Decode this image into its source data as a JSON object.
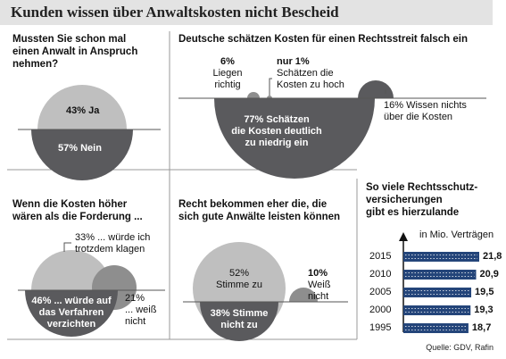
{
  "header": {
    "title": "Kunden wissen über Anwaltskosten nicht Bescheid"
  },
  "colors": {
    "dark": "#5a5a5d",
    "light": "#bfbfbf",
    "bar": "#24457a",
    "header_bg": "#e3e3e3"
  },
  "source": "Quelle: GDV, Rafin",
  "chart_data": [
    {
      "type": "pie",
      "title": "Mussten Sie schon mal einen Anwalt in Anspruch nehmen?",
      "title_lines": [
        "Mussten Sie schon mal",
        "einen Anwalt in Anspruch",
        "nehmen?"
      ],
      "slices": [
        {
          "label": "Ja",
          "value": 43,
          "text": "43% Ja"
        },
        {
          "label": "Nein",
          "value": 57,
          "text": "57% Nein"
        }
      ]
    },
    {
      "type": "pie",
      "title": "Deutsche schätzen Kosten für einen Rechtsstreit falsch ein",
      "slices": [
        {
          "value": 6,
          "lines": [
            "6%",
            "Liegen",
            "richtig"
          ]
        },
        {
          "value": 1,
          "lines": [
            "nur 1%",
            "Schätzen die",
            "Kosten zu hoch"
          ]
        },
        {
          "value": 16,
          "lines": [
            "16% Wissen nichts",
            "über die Kosten"
          ]
        },
        {
          "value": 77,
          "lines": [
            "77% Schätzen",
            "die Kosten deutlich",
            "zu niedrig ein"
          ]
        }
      ]
    },
    {
      "type": "pie",
      "title": "Wenn die Kosten höher wären als die Forderung ...",
      "title_lines": [
        "Wenn die Kosten höher",
        "wären als die Forderung ..."
      ],
      "slices": [
        {
          "value": 33,
          "lines": [
            "33% ... würde ich",
            "trotzdem klagen"
          ]
        },
        {
          "value": 46,
          "lines": [
            "46% ... würde auf",
            "das Verfahren",
            "verzichten"
          ]
        },
        {
          "value": 21,
          "lines": [
            "21%",
            "... weiß",
            "nicht"
          ]
        }
      ]
    },
    {
      "type": "pie",
      "title": "Recht bekommen eher die, die sich gute Anwälte leisten können",
      "title_lines": [
        "Recht bekommen eher die, die",
        "sich gute Anwälte leisten können"
      ],
      "slices": [
        {
          "value": 52,
          "lines": [
            "52%",
            "Stimme zu"
          ]
        },
        {
          "value": 38,
          "lines": [
            "38% Stimme",
            "nicht zu"
          ]
        },
        {
          "value": 10,
          "lines": [
            "10%",
            "Weiß",
            "nicht"
          ]
        }
      ]
    },
    {
      "type": "bar",
      "orientation": "horizontal",
      "title": "So viele Rechtsschutzversicherungen gibt es hierzulande",
      "title_lines": [
        "So viele Rechtsschutz-",
        "versicherungen",
        "gibt es hierzulande"
      ],
      "unit_label": "in Mio. Verträgen",
      "categories": [
        "2015",
        "2010",
        "2005",
        "2000",
        "1995"
      ],
      "values": [
        21.8,
        20.9,
        19.5,
        19.3,
        18.7
      ],
      "value_labels": [
        "21,8",
        "20,9",
        "19,5",
        "19,3",
        "18,7"
      ]
    }
  ]
}
